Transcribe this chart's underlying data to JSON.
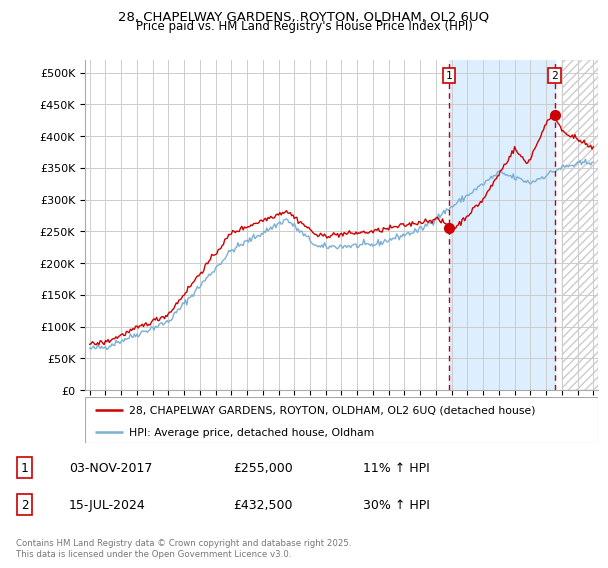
{
  "title_line1": "28, CHAPELWAY GARDENS, ROYTON, OLDHAM, OL2 6UQ",
  "title_line2": "Price paid vs. HM Land Registry's House Price Index (HPI)",
  "background_color": "#ffffff",
  "plot_bg_color": "#ffffff",
  "grid_color": "#cccccc",
  "hpi_color": "#7bafd4",
  "price_color": "#cc0000",
  "marker1_date": "03-NOV-2017",
  "marker1_price": 255000,
  "marker1_label": "11% ↑ HPI",
  "marker1_x": 2017.84,
  "marker2_date": "15-JUL-2024",
  "marker2_price": 432500,
  "marker2_label": "30% ↑ HPI",
  "marker2_x": 2024.54,
  "ylim": [
    0,
    520000
  ],
  "yticks": [
    0,
    50000,
    100000,
    150000,
    200000,
    250000,
    300000,
    350000,
    400000,
    450000,
    500000
  ],
  "xlim_min": 1994.7,
  "xlim_max": 2027.3,
  "legend_label1": "28, CHAPELWAY GARDENS, ROYTON, OLDHAM, OL2 6UQ (detached house)",
  "legend_label2": "HPI: Average price, detached house, Oldham",
  "footnote": "Contains HM Land Registry data © Crown copyright and database right 2025.\nThis data is licensed under the Open Government Licence v3.0.",
  "shade_between_color": "#ddeeff",
  "hatch_color": "#aaaaaa",
  "future_start": 2025.0,
  "between_shade_start": 2017.84,
  "between_shade_end": 2024.54
}
